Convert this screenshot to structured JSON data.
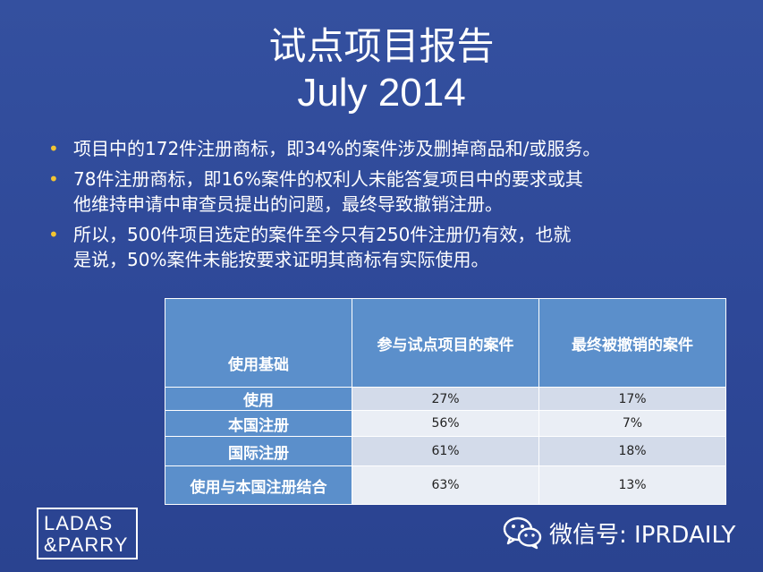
{
  "title": {
    "line1": "试点项目报告",
    "line2": "July 2014"
  },
  "bullets": [
    {
      "lines": [
        "项目中的172件注册商标，即34%的案件涉及删掉商品和/或服务。"
      ]
    },
    {
      "lines": [
        "78件注册商标，即16%案件的权利人未能答复项目中的要求或其",
        "他维持申请中审查员提出的问题，最终导致撤销注册。"
      ]
    },
    {
      "lines": [
        "所以，500件项目选定的案件至今只有250件注册仍有效，也就",
        "是说，50%案件未能按要求证明其商标有实际使用。"
      ]
    }
  ],
  "table": {
    "headers": [
      "使用基础",
      "参与试点项目的案件",
      "最终被撤销的案件"
    ],
    "rows": [
      [
        "使用",
        "27%",
        "17%"
      ],
      [
        "本国注册",
        "56%",
        "7%"
      ],
      [
        "国际注册",
        "61%",
        "18%"
      ],
      [
        "使用与本国注册结合",
        "63%",
        "13%"
      ]
    ]
  },
  "logo": {
    "line1": "LADAS",
    "line2": "&PARRY"
  },
  "watermark": {
    "text": "微信号: IPRDAILY",
    "icon": "wechat-icon"
  },
  "colors": {
    "background": "#2e4898",
    "bullet": "#f3c531",
    "table_header": "#5b8fcb"
  }
}
